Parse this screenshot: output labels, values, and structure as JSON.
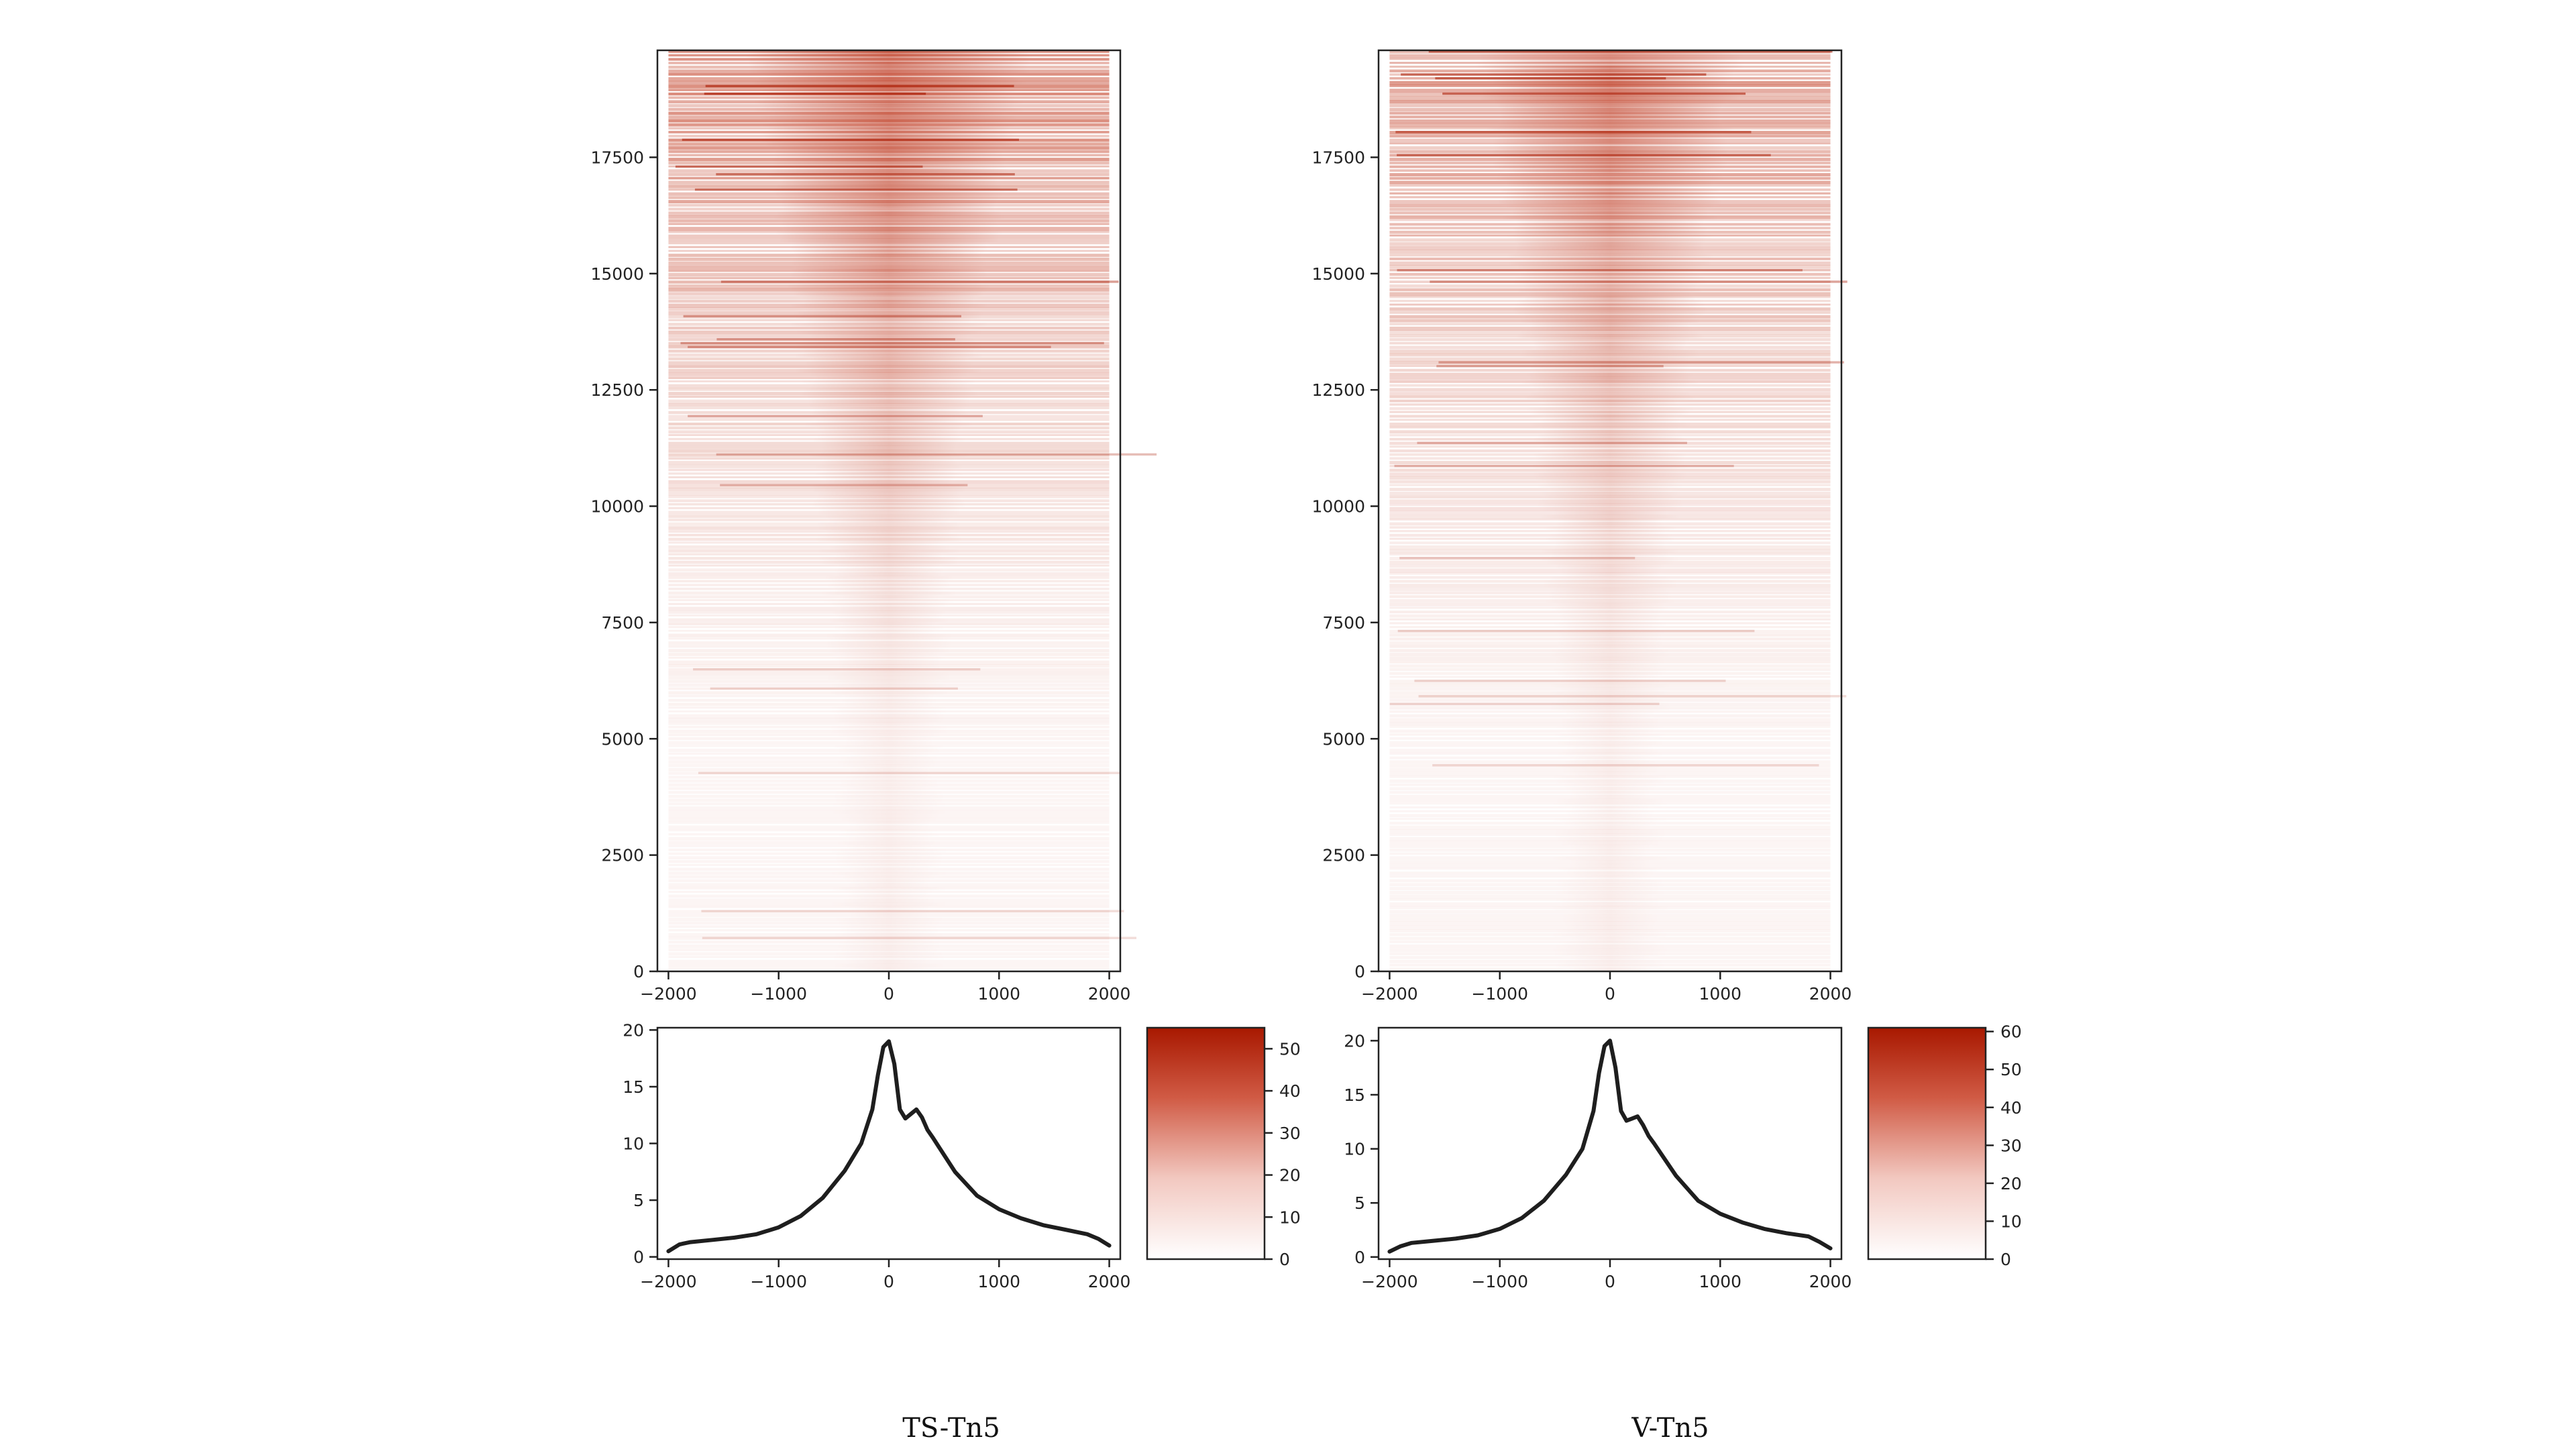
{
  "chart_data": [
    {
      "type": "heatmap",
      "caption": "TS-Tn5",
      "heatmap": {
        "x_ticks": [
          -2000,
          -1000,
          0,
          1000,
          2000
        ],
        "x_tick_labels": [
          "−2000",
          "−1000",
          "0",
          "1000",
          "2000"
        ],
        "xlim": [
          -2100,
          2100
        ],
        "y_ticks": [
          0,
          2500,
          5000,
          7500,
          10000,
          12500,
          15000,
          17500
        ],
        "y_tick_labels": [
          "0",
          "2500",
          "5000",
          "7500",
          "10000",
          "12500",
          "15000",
          "17500"
        ],
        "ylim": [
          0,
          19800
        ],
        "color_low": "#ffffff",
        "color_high": "#a81800",
        "strength": 1.0
      },
      "profile": {
        "type": "line",
        "x": [
          -2000,
          -1900,
          -1800,
          -1600,
          -1400,
          -1200,
          -1000,
          -800,
          -600,
          -400,
          -250,
          -150,
          -100,
          -50,
          0,
          50,
          100,
          150,
          200,
          250,
          300,
          350,
          400,
          500,
          600,
          800,
          1000,
          1200,
          1400,
          1600,
          1800,
          1900,
          2000
        ],
        "y": [
          0.5,
          1.1,
          1.3,
          1.5,
          1.7,
          2.0,
          2.6,
          3.6,
          5.2,
          7.6,
          10.0,
          13.0,
          16.0,
          18.5,
          19.0,
          17.0,
          13.0,
          12.2,
          12.6,
          13.0,
          12.3,
          11.2,
          10.5,
          9.0,
          7.5,
          5.4,
          4.2,
          3.4,
          2.8,
          2.4,
          2.0,
          1.6,
          1.0
        ],
        "y_ticks": [
          0,
          5,
          10,
          15,
          20
        ],
        "ylim": [
          -0.2,
          20.2
        ],
        "x_tick_labels": [
          "−2000",
          "−1000",
          "0",
          "1000",
          "2000"
        ]
      },
      "colorbar": {
        "ticks": [
          0,
          10,
          20,
          30,
          40,
          50
        ],
        "range": [
          0,
          55
        ]
      }
    },
    {
      "type": "heatmap",
      "caption": "V-Tn5",
      "heatmap": {
        "x_ticks": [
          -2000,
          -1000,
          0,
          1000,
          2000
        ],
        "x_tick_labels": [
          "−2000",
          "−1000",
          "0",
          "1000",
          "2000"
        ],
        "xlim": [
          -2100,
          2100
        ],
        "y_ticks": [
          0,
          2500,
          5000,
          7500,
          10000,
          12500,
          15000,
          17500
        ],
        "y_tick_labels": [
          "0",
          "2500",
          "5000",
          "7500",
          "10000",
          "12500",
          "15000",
          "17500"
        ],
        "ylim": [
          0,
          19800
        ],
        "color_low": "#ffffff",
        "color_high": "#a81800",
        "strength": 0.9
      },
      "profile": {
        "type": "line",
        "x": [
          -2000,
          -1900,
          -1800,
          -1600,
          -1400,
          -1200,
          -1000,
          -800,
          -600,
          -400,
          -250,
          -150,
          -100,
          -50,
          0,
          50,
          100,
          150,
          200,
          250,
          300,
          350,
          400,
          500,
          600,
          800,
          1000,
          1200,
          1400,
          1600,
          1800,
          1900,
          2000
        ],
        "y": [
          0.5,
          1.0,
          1.3,
          1.5,
          1.7,
          2.0,
          2.6,
          3.6,
          5.2,
          7.6,
          10.0,
          13.5,
          17.0,
          19.5,
          20.0,
          17.5,
          13.5,
          12.6,
          12.8,
          13.0,
          12.2,
          11.2,
          10.5,
          9.0,
          7.5,
          5.2,
          4.0,
          3.2,
          2.6,
          2.2,
          1.9,
          1.4,
          0.8
        ],
        "y_ticks": [
          0,
          5,
          10,
          15,
          20
        ],
        "ylim": [
          -0.2,
          21.2
        ],
        "x_tick_labels": [
          "−2000",
          "−1000",
          "0",
          "1000",
          "2000"
        ]
      },
      "colorbar": {
        "ticks": [
          0,
          10,
          20,
          30,
          40,
          50,
          60
        ],
        "range": [
          0,
          61
        ]
      }
    }
  ]
}
